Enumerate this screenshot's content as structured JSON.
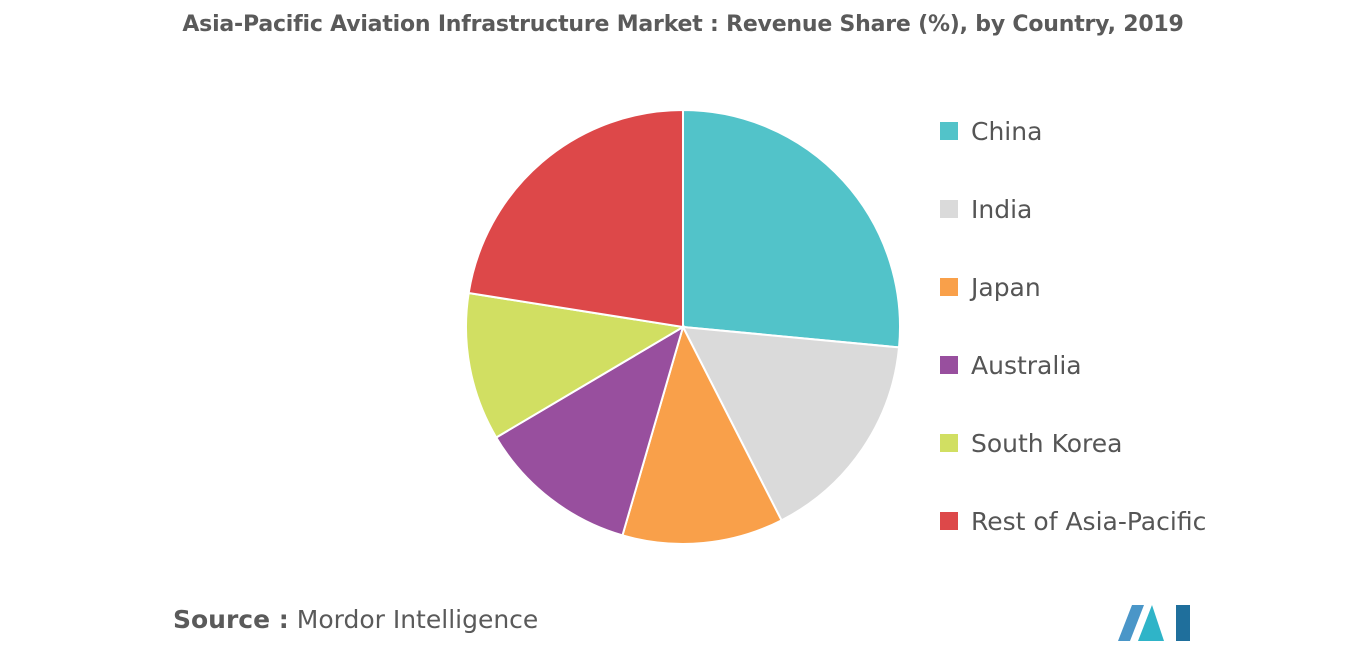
{
  "chart_data": {
    "type": "pie",
    "title": "Asia-Pacific Aviation Infrastructure Market : Revenue Share (%), by Country, 2019",
    "categories": [
      "China",
      "India",
      "Japan",
      "Australia",
      "South Korea",
      "Rest of Asia-Pacific"
    ],
    "values": [
      26.5,
      16,
      12,
      12,
      11,
      22.5
    ],
    "colors": [
      "#52c3c9",
      "#dadada",
      "#f9a04a",
      "#984f9e",
      "#d1df62",
      "#dd4849"
    ],
    "legend_position": "right"
  },
  "source": {
    "prefix": "Source :",
    "name": "Mordor Intelligence"
  },
  "logo": {
    "colors": [
      "#4a96c8",
      "#2fb4c8",
      "#1f6f9c"
    ]
  }
}
